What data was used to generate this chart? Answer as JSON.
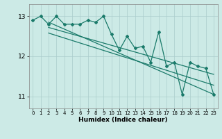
{
  "x": [
    0,
    1,
    2,
    3,
    4,
    5,
    6,
    7,
    8,
    9,
    10,
    11,
    12,
    13,
    14,
    15,
    16,
    17,
    18,
    19,
    20,
    21,
    22,
    23
  ],
  "y_line": [
    12.9,
    13.0,
    12.8,
    13.0,
    12.8,
    12.8,
    12.8,
    12.9,
    12.85,
    13.0,
    12.55,
    12.15,
    12.5,
    12.2,
    12.25,
    11.85,
    12.6,
    11.75,
    11.85,
    11.05,
    11.85,
    11.75,
    11.7,
    11.05
  ],
  "trend1_x": [
    2,
    23
  ],
  "trend1_y": [
    12.85,
    11.05
  ],
  "trend2_x": [
    2,
    23
  ],
  "trend2_y": [
    12.72,
    11.55
  ],
  "trend3_x": [
    2,
    23
  ],
  "trend3_y": [
    12.58,
    11.28
  ],
  "xlabel": "Humidex (Indice chaleur)",
  "xlim": [
    -0.5,
    23.5
  ],
  "ylim": [
    10.7,
    13.3
  ],
  "yticks": [
    11,
    12,
    13
  ],
  "xticks": [
    0,
    1,
    2,
    3,
    4,
    5,
    6,
    7,
    8,
    9,
    10,
    11,
    12,
    13,
    14,
    15,
    16,
    17,
    18,
    19,
    20,
    21,
    22,
    23
  ],
  "line_color": "#1a7a6a",
  "bg_color": "#cceae6",
  "grid_color": "#aacccc",
  "spine_color": "#888888"
}
